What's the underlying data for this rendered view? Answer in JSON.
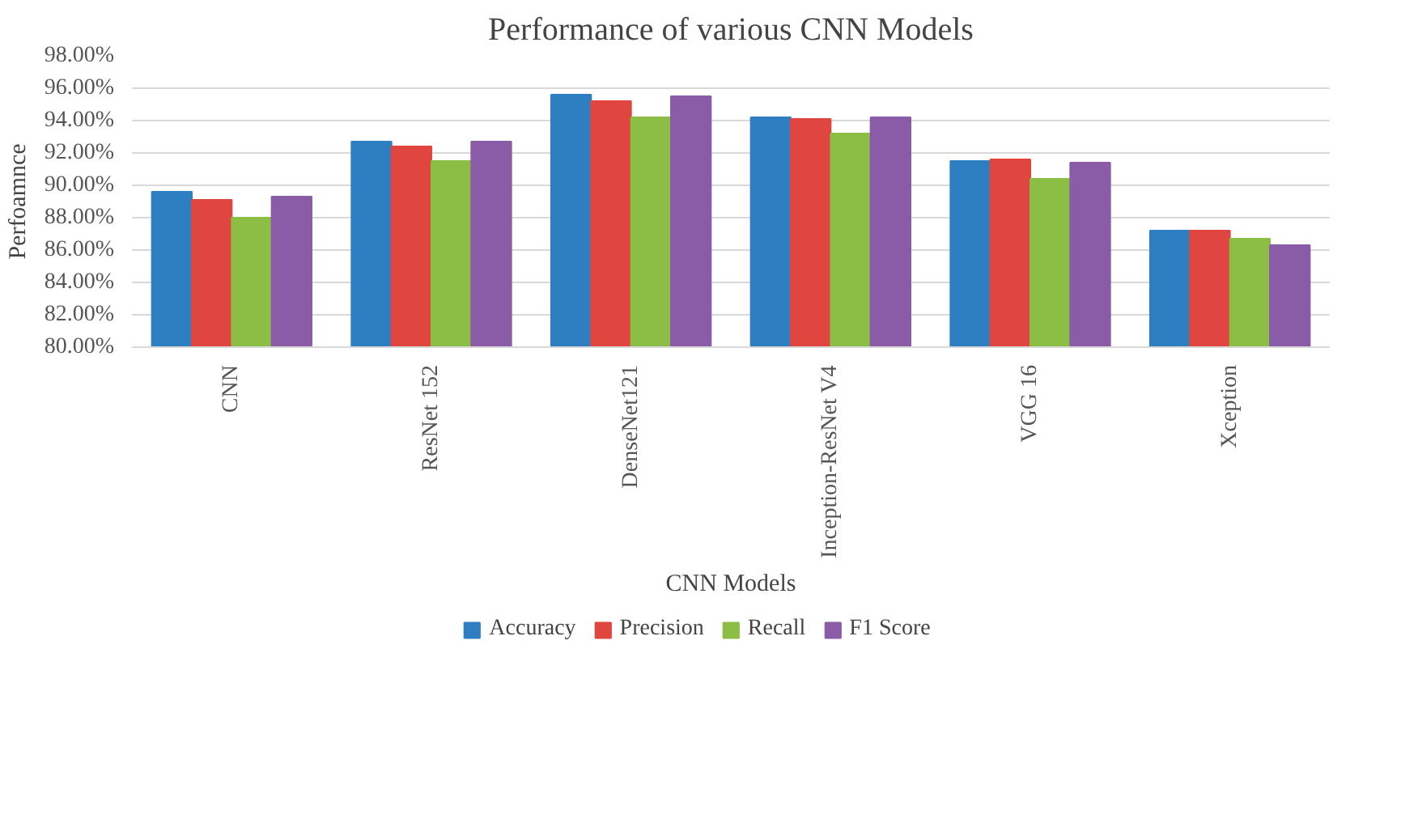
{
  "chart_data": {
    "type": "bar",
    "title": "Performance of various CNN Models",
    "xlabel": "CNN Models",
    "ylabel": "Perfoamnce",
    "categories": [
      "CNN",
      "ResNet 152",
      "DenseNet121",
      "Inception-ResNet V4",
      "VGG 16",
      "Xception"
    ],
    "series": [
      {
        "name": "Accuracy",
        "color": "#2e7ec2",
        "values": [
          89.6,
          92.7,
          95.6,
          94.2,
          91.5,
          87.2
        ]
      },
      {
        "name": "Precision",
        "color": "#e0463f",
        "values": [
          89.1,
          92.4,
          95.2,
          94.1,
          91.6,
          87.2
        ]
      },
      {
        "name": "Recall",
        "color": "#8cbd44",
        "values": [
          88.0,
          91.5,
          94.2,
          93.2,
          90.4,
          86.7
        ]
      },
      {
        "name": "F1 Score",
        "color": "#8a5ca8",
        "values": [
          89.3,
          92.7,
          95.5,
          94.2,
          91.4,
          86.3
        ]
      }
    ],
    "ylim": [
      80,
      98
    ],
    "yticks": [
      {
        "value": 80,
        "label": "80.00%"
      },
      {
        "value": 82,
        "label": "82.00%"
      },
      {
        "value": 84,
        "label": "84.00%"
      },
      {
        "value": 86,
        "label": "86.00%"
      },
      {
        "value": 88,
        "label": "88.00%"
      },
      {
        "value": 90,
        "label": "90.00%"
      },
      {
        "value": 92,
        "label": "92.00%"
      },
      {
        "value": 94,
        "label": "94.00%"
      },
      {
        "value": 96,
        "label": "96.00%"
      },
      {
        "value": 98,
        "label": "98.00%"
      }
    ],
    "grid": "y",
    "legend": "bottom"
  }
}
